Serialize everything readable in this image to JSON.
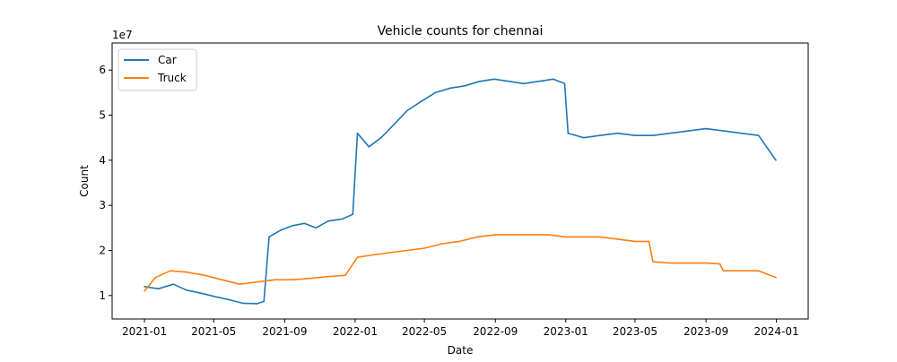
{
  "chart_data": {
    "type": "line",
    "title": "Vehicle counts for chennai",
    "xlabel": "Date",
    "ylabel": "Count",
    "y_offset_label": "1e7",
    "grid": false,
    "legend_placement": "top-left",
    "x_range": [
      "2020-11-06",
      "2024-02-25"
    ],
    "ylim": [
      0.48,
      6.6
    ],
    "x_ticks": [
      "2021-01",
      "2021-05",
      "2021-09",
      "2022-01",
      "2022-05",
      "2022-09",
      "2023-01",
      "2023-05",
      "2023-09",
      "2024-01"
    ],
    "y_ticks": [
      1,
      2,
      3,
      4,
      5,
      6
    ],
    "series": [
      {
        "name": "Car",
        "color": "#1f77b4",
        "points": [
          [
            "2021-01-01",
            1.2
          ],
          [
            "2021-01-25",
            1.15
          ],
          [
            "2021-02-20",
            1.25
          ],
          [
            "2021-03-15",
            1.12
          ],
          [
            "2021-04-10",
            1.05
          ],
          [
            "2021-05-05",
            0.97
          ],
          [
            "2021-05-30",
            0.9
          ],
          [
            "2021-06-20",
            0.83
          ],
          [
            "2021-07-15",
            0.82
          ],
          [
            "2021-07-27",
            0.87
          ],
          [
            "2021-08-05",
            2.3
          ],
          [
            "2021-08-25",
            2.45
          ],
          [
            "2021-09-15",
            2.55
          ],
          [
            "2021-10-05",
            2.6
          ],
          [
            "2021-10-25",
            2.5
          ],
          [
            "2021-11-15",
            2.65
          ],
          [
            "2021-12-10",
            2.7
          ],
          [
            "2021-12-28",
            2.8
          ],
          [
            "2022-01-05",
            4.6
          ],
          [
            "2022-01-25",
            4.3
          ],
          [
            "2022-02-15",
            4.5
          ],
          [
            "2022-03-10",
            4.8
          ],
          [
            "2022-04-01",
            5.1
          ],
          [
            "2022-04-25",
            5.3
          ],
          [
            "2022-05-20",
            5.5
          ],
          [
            "2022-06-15",
            5.6
          ],
          [
            "2022-07-10",
            5.65
          ],
          [
            "2022-08-05",
            5.75
          ],
          [
            "2022-08-30",
            5.8
          ],
          [
            "2022-09-25",
            5.75
          ],
          [
            "2022-10-20",
            5.7
          ],
          [
            "2022-11-15",
            5.75
          ],
          [
            "2022-12-10",
            5.8
          ],
          [
            "2022-12-30",
            5.7
          ],
          [
            "2023-01-05",
            4.6
          ],
          [
            "2023-02-01",
            4.5
          ],
          [
            "2023-03-01",
            4.55
          ],
          [
            "2023-04-01",
            4.6
          ],
          [
            "2023-05-01",
            4.55
          ],
          [
            "2023-06-01",
            4.55
          ],
          [
            "2023-07-01",
            4.6
          ],
          [
            "2023-08-01",
            4.65
          ],
          [
            "2023-09-01",
            4.7
          ],
          [
            "2023-10-01",
            4.65
          ],
          [
            "2023-11-01",
            4.6
          ],
          [
            "2023-12-01",
            4.55
          ],
          [
            "2023-12-31",
            4.0
          ]
        ]
      },
      {
        "name": "Truck",
        "color": "#ff7f0e",
        "points": [
          [
            "2021-01-01",
            1.1
          ],
          [
            "2021-01-20",
            1.4
          ],
          [
            "2021-02-15",
            1.55
          ],
          [
            "2021-03-15",
            1.52
          ],
          [
            "2021-04-15",
            1.45
          ],
          [
            "2021-05-15",
            1.35
          ],
          [
            "2021-06-15",
            1.25
          ],
          [
            "2021-07-15",
            1.3
          ],
          [
            "2021-08-15",
            1.35
          ],
          [
            "2021-09-15",
            1.35
          ],
          [
            "2021-10-15",
            1.38
          ],
          [
            "2021-11-15",
            1.42
          ],
          [
            "2021-12-15",
            1.45
          ],
          [
            "2022-01-05",
            1.85
          ],
          [
            "2022-02-01",
            1.9
          ],
          [
            "2022-03-01",
            1.95
          ],
          [
            "2022-04-01",
            2.0
          ],
          [
            "2022-05-01",
            2.05
          ],
          [
            "2022-06-01",
            2.15
          ],
          [
            "2022-07-01",
            2.2
          ],
          [
            "2022-08-01",
            2.3
          ],
          [
            "2022-09-01",
            2.35
          ],
          [
            "2022-10-01",
            2.35
          ],
          [
            "2022-11-01",
            2.35
          ],
          [
            "2022-12-01",
            2.35
          ],
          [
            "2023-01-01",
            2.3
          ],
          [
            "2023-02-01",
            2.3
          ],
          [
            "2023-03-01",
            2.3
          ],
          [
            "2023-04-01",
            2.25
          ],
          [
            "2023-05-01",
            2.2
          ],
          [
            "2023-05-25",
            2.2
          ],
          [
            "2023-06-01",
            1.75
          ],
          [
            "2023-07-01",
            1.72
          ],
          [
            "2023-08-01",
            1.72
          ],
          [
            "2023-09-01",
            1.72
          ],
          [
            "2023-09-25",
            1.7
          ],
          [
            "2023-10-01",
            1.55
          ],
          [
            "2023-11-01",
            1.55
          ],
          [
            "2023-12-01",
            1.55
          ],
          [
            "2023-12-31",
            1.4
          ]
        ]
      }
    ]
  }
}
